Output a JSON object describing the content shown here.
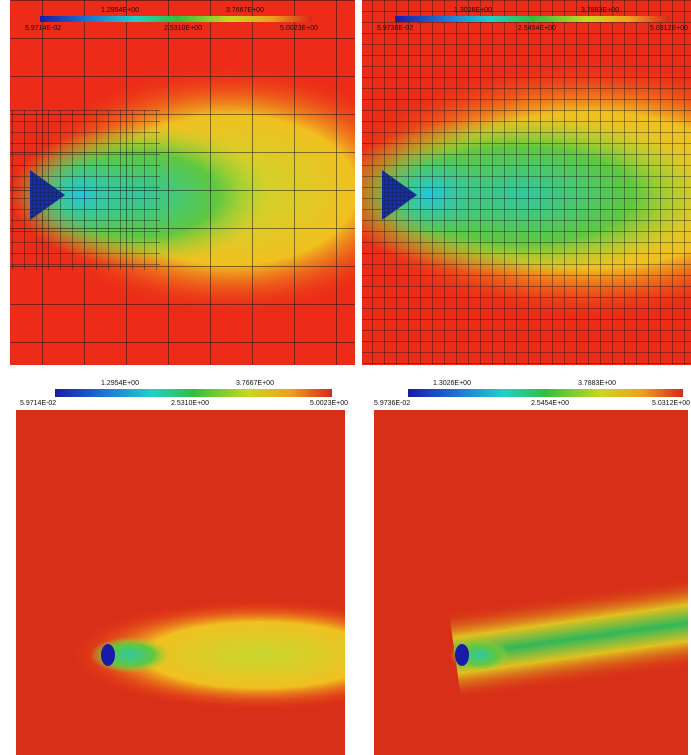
{
  "panels": [
    {
      "colorbar": {
        "upper_labels": [
          "1.2954E+00",
          "3.7667E+00"
        ],
        "lower_labels": [
          "5.9714E-02",
          "2.5310E+00",
          "5.0023E+00"
        ]
      }
    },
    {
      "colorbar": {
        "upper_labels": [
          "1.3026E+00",
          "3.7883E+00"
        ],
        "lower_labels": [
          "5.9736E-02",
          "2.5454E+00",
          "5.0312E+00"
        ]
      }
    },
    {
      "colorbar": {
        "upper_labels": [
          "1.2954E+00",
          "3.7667E+00"
        ],
        "lower_labels": [
          "5.9714E-02",
          "2.5310E+00",
          "5.0023E+00"
        ]
      }
    },
    {
      "colorbar": {
        "upper_labels": [
          "1.3026E+00",
          "3.7883E+00"
        ],
        "lower_labels": [
          "5.9736E-02",
          "2.5454E+00",
          "5.0312E+00"
        ]
      }
    }
  ]
}
